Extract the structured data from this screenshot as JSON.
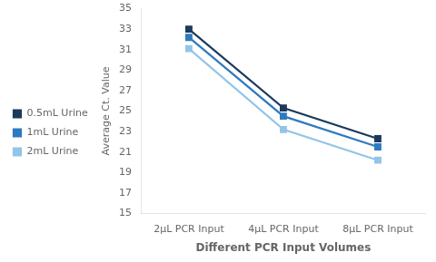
{
  "chart_data": {
    "type": "line",
    "categories": [
      "2μL PCR Input",
      "4μL PCR Input",
      "8μL PCR Input"
    ],
    "series": [
      {
        "name": "0.5mL Urine",
        "color": "#1c3a5c",
        "marker": "square",
        "values": [
          33.0,
          25.3,
          22.3
        ]
      },
      {
        "name": "1mL Urine",
        "color": "#2f7abf",
        "marker": "square",
        "values": [
          32.2,
          24.5,
          21.5
        ]
      },
      {
        "name": "2mL Urine",
        "color": "#92c5e8",
        "marker": "square",
        "values": [
          31.1,
          23.2,
          20.2
        ]
      }
    ],
    "xlabel": "Different PCR Input Volumes",
    "ylabel": "Average Ct. Value",
    "ylim": [
      15,
      35
    ],
    "yticks": [
      15,
      17,
      19,
      21,
      23,
      25,
      27,
      29,
      31,
      33,
      35
    ],
    "grid": false,
    "legend": "left"
  }
}
